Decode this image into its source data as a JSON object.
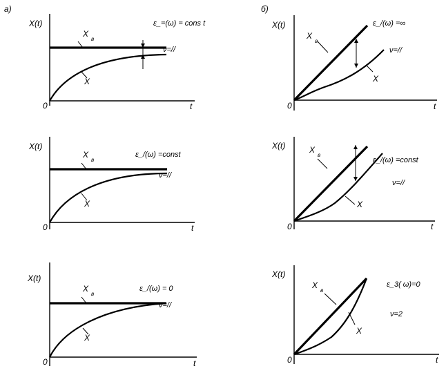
{
  "labels": {
    "panel_a": "a)",
    "panel_b": "б)",
    "axis_y": "X(t)",
    "axis_x": "t",
    "origin": "0",
    "reference": "X",
    "reference_sub": "в",
    "response": "X"
  },
  "panels": [
    {
      "id": "a1",
      "condition": "ε_=(ω) = cons t",
      "nu": "ν=//"
    },
    {
      "id": "a2",
      "condition": "ε_/(ω) =const",
      "nu": "ν=//"
    },
    {
      "id": "a3",
      "condition": "ε_/(ω) = 0",
      "nu": "ν=//"
    },
    {
      "id": "b1",
      "condition": "ε_/(ω) =∞",
      "nu": "ν=//"
    },
    {
      "id": "b2",
      "condition": "ε_/(ω) =const",
      "nu": "ν=//"
    },
    {
      "id": "b3",
      "condition": "ε_3( ω)=0",
      "nu": "ν=2"
    }
  ]
}
